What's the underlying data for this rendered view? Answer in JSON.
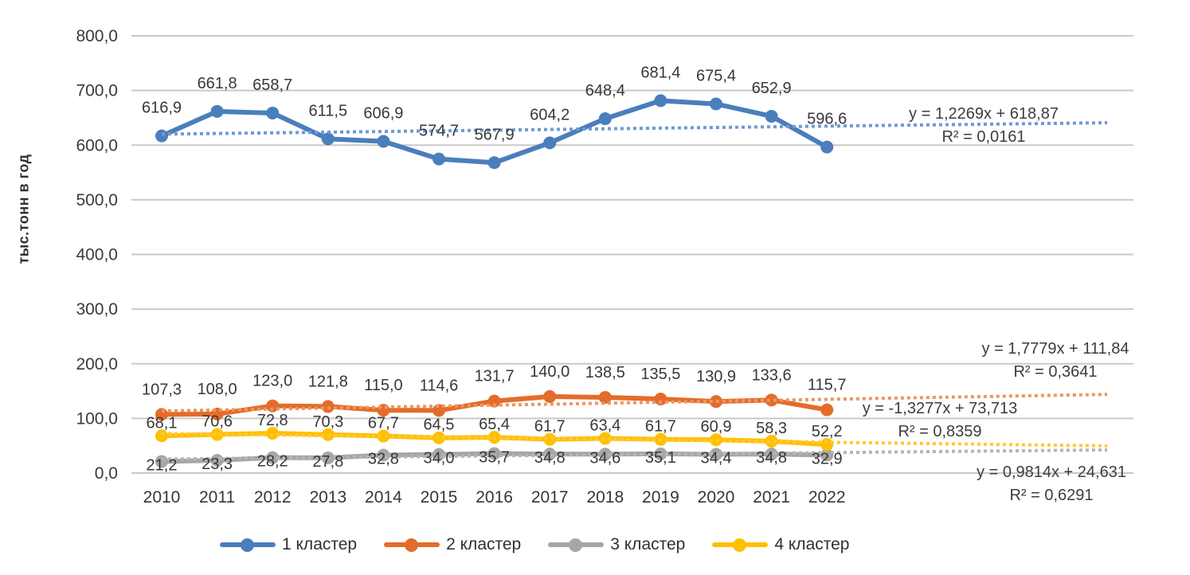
{
  "chart_data": {
    "type": "line",
    "title": "",
    "xlabel": "",
    "ylabel": "тыс.тонн в год",
    "ylim": [
      0,
      800
    ],
    "ytick_step": 100,
    "grid": true,
    "legend_position": "bottom",
    "ytick_labels": [
      "800,0",
      "700,0",
      "600,0",
      "500,0",
      "400,0",
      "300,0",
      "200,0",
      "100,0",
      "0,0"
    ],
    "x_labels": [
      "2010",
      "2011",
      "2012",
      "2013",
      "2014",
      "2015",
      "2016",
      "2017",
      "2018",
      "2019",
      "2020",
      "2021",
      "2022"
    ],
    "series": [
      {
        "name": "1 кластер",
        "color": "#4a7ebc",
        "trend_color": "#6f9ad2",
        "values": [
          616.9,
          661.8,
          658.7,
          611.5,
          606.9,
          574.7,
          567.9,
          604.2,
          648.4,
          681.4,
          675.4,
          652.9,
          596.6
        ],
        "labels": [
          "616,9",
          "661,8",
          "658,7",
          "611,5",
          "606,9",
          "574,7",
          "567,9",
          "604,2",
          "648,4",
          "681,4",
          "675,4",
          "652,9",
          "596,6"
        ],
        "trend": {
          "slope": 1.2269,
          "intercept": 618.87,
          "equation": "y = 1,2269x + 618,87",
          "r2": "R² = 0,0161"
        }
      },
      {
        "name": "2 кластер",
        "color": "#e46c2a",
        "trend_color": "#ec9663",
        "values": [
          107.3,
          108.0,
          123.0,
          121.8,
          115.0,
          114.6,
          131.7,
          140.0,
          138.5,
          135.5,
          130.9,
          133.6,
          115.7
        ],
        "labels": [
          "107,3",
          "108,0",
          "123,0",
          "121,8",
          "115,0",
          "114,6",
          "131,7",
          "140,0",
          "138,5",
          "135,5",
          "130,9",
          "133,6",
          "115,7"
        ],
        "trend": {
          "slope": 1.7779,
          "intercept": 111.84,
          "equation": "y = 1,7779x + 111,84",
          "r2": "R² = 0,3641"
        }
      },
      {
        "name": "3 кластер",
        "color": "#a6a6a6",
        "trend_color": "#b5b5b5",
        "values": [
          21.2,
          23.3,
          28.2,
          27.8,
          32.8,
          34.0,
          35.7,
          34.8,
          34.6,
          35.1,
          34.4,
          34.8,
          32.9
        ],
        "labels": [
          "21,2",
          "23,3",
          "28,2",
          "27,8",
          "32,8",
          "34,0",
          "35,7",
          "34,8",
          "34,6",
          "35,1",
          "34,4",
          "34,8",
          "32,9"
        ],
        "trend": {
          "slope": 0.9814,
          "intercept": 24.631,
          "equation": "y = 0,9814x + 24,631",
          "r2": "R² = 0,6291"
        }
      },
      {
        "name": "4 кластер",
        "color": "#ffc000",
        "trend_color": "#ffc836",
        "values": [
          68.1,
          70.6,
          72.8,
          70.3,
          67.7,
          64.5,
          65.4,
          61.7,
          63.4,
          61.7,
          60.9,
          58.3,
          52.2
        ],
        "labels": [
          "68,1",
          "70,6",
          "72,8",
          "70,3",
          "67,7",
          "64,5",
          "65,4",
          "61,7",
          "63,4",
          "61,7",
          "60,9",
          "58,3",
          "52,2"
        ],
        "trend": {
          "slope": -1.3277,
          "intercept": 73.713,
          "equation": "y = -1,3277x + 73,713",
          "r2": "R² = 0,8359"
        }
      }
    ]
  }
}
